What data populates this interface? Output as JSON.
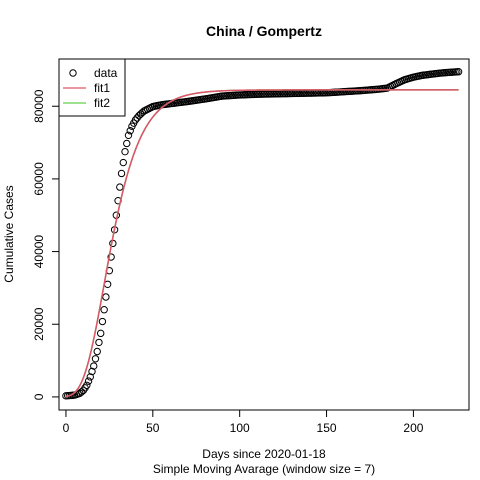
{
  "chart_data": {
    "type": "scatter",
    "title": "China / Gompertz",
    "xlabel": "Days since 2020-01-18",
    "subtitle": "Simple Moving Avarage (window size = 7)",
    "ylabel": "Cumulative Cases",
    "xlim": [
      -4,
      232
    ],
    "ylim": [
      -3600,
      93000
    ],
    "x_ticks": [
      0,
      50,
      100,
      150,
      200
    ],
    "y_ticks": [
      0,
      20000,
      40000,
      60000,
      80000
    ],
    "legend": {
      "position": "top-left",
      "entries": [
        {
          "name": "data",
          "kind": "point",
          "color": "#000000"
        },
        {
          "name": "fit1",
          "kind": "line",
          "color": "#DF536B"
        },
        {
          "name": "fit2",
          "kind": "line",
          "color": "#61D04F"
        }
      ]
    },
    "data_anchors": {
      "x": [
        0,
        5,
        8,
        10,
        12,
        14,
        16,
        18,
        20,
        22,
        24,
        26,
        28,
        30,
        32,
        34,
        36,
        38,
        40,
        42,
        45,
        50,
        55,
        60,
        65,
        70,
        80,
        90,
        100,
        110,
        120,
        130,
        140,
        150,
        160,
        170,
        180,
        185,
        190,
        195,
        200,
        205,
        210,
        215,
        220,
        226
      ],
      "y": [
        300,
        500,
        1000,
        1800,
        3200,
        5500,
        8500,
        12500,
        17500,
        24000,
        31000,
        38500,
        46000,
        54000,
        61500,
        67500,
        72000,
        74500,
        76200,
        77400,
        78700,
        79900,
        80400,
        80700,
        81000,
        81300,
        82000,
        82800,
        83100,
        83300,
        83400,
        83500,
        83600,
        83700,
        84000,
        84300,
        84700,
        85000,
        86200,
        87300,
        88000,
        88500,
        88800,
        89100,
        89300,
        89500
      ]
    },
    "fit1": {
      "a": 84500,
      "b": 6.5,
      "c": 0.085,
      "color": "#DF536B"
    },
    "fit2": {
      "color": "#61D04F"
    }
  }
}
